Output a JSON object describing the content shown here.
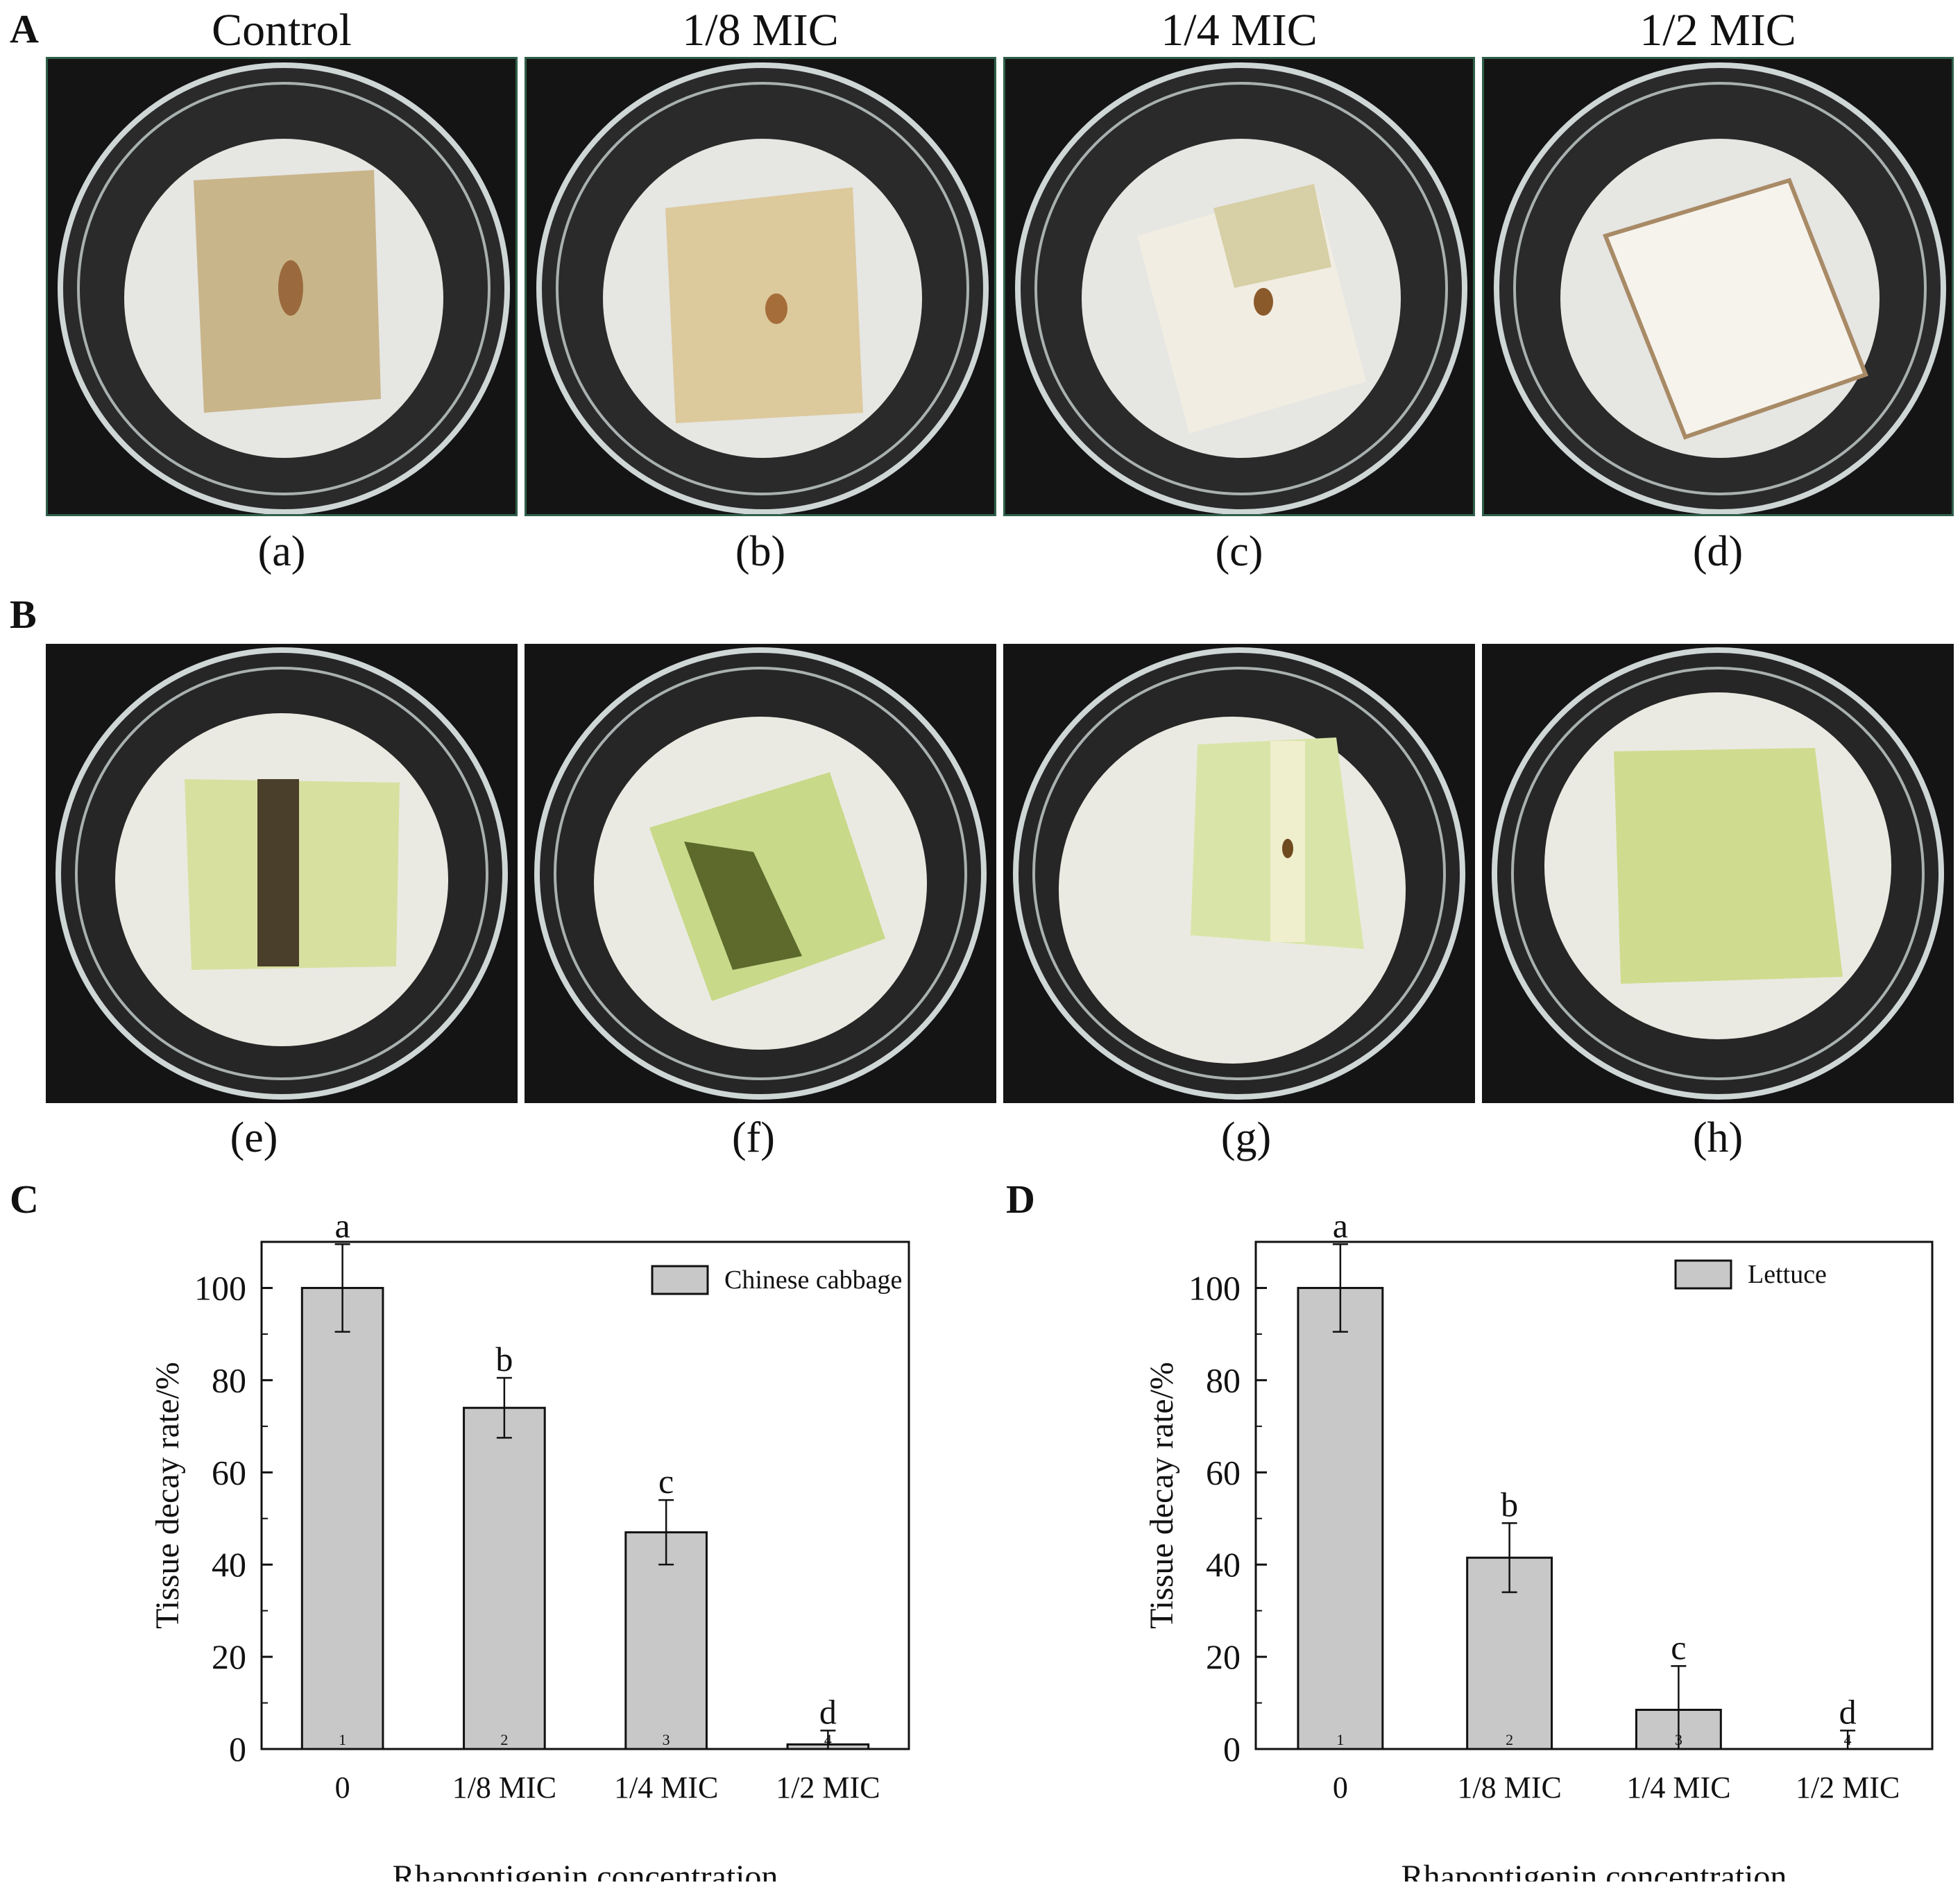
{
  "panels": {
    "A": "A",
    "B": "B",
    "C": "C",
    "D": "D"
  },
  "column_headers": [
    "Control",
    "1/8 MIC",
    "1/4 MIC",
    "1/2 MIC"
  ],
  "row_a_labels": [
    "(a)",
    "(b)",
    "(c)",
    "(d)"
  ],
  "row_b_labels": [
    "(e)",
    "(f)",
    "(g)",
    "(h)"
  ],
  "chart_data": [
    {
      "type": "bar",
      "panel": "C",
      "categories": [
        "0",
        "1/8 MIC",
        "1/4 MIC",
        "1/2 MIC"
      ],
      "category_index_labels": [
        "1",
        "2",
        "3",
        "4"
      ],
      "values": [
        100,
        74,
        47,
        1
      ],
      "errors": [
        9.5,
        6.5,
        7,
        3
      ],
      "letters": [
        "a",
        "b",
        "c",
        "d"
      ],
      "legend": "Chinese cabbage",
      "legend_position": "top-right",
      "xlabel": "Rhapontigenin concentration",
      "ylabel": "Tissue decay rate/%",
      "ylim": [
        0,
        110
      ],
      "yticks": [
        0,
        20,
        40,
        60,
        80,
        100
      ],
      "bar_color": "#c8c8c8"
    },
    {
      "type": "bar",
      "panel": "D",
      "categories": [
        "0",
        "1/8 MIC",
        "1/4 MIC",
        "1/2 MIC"
      ],
      "category_index_labels": [
        "1",
        "2",
        "3",
        "4"
      ],
      "values": [
        100,
        41.5,
        8.5,
        0
      ],
      "errors": [
        9.5,
        7.5,
        9.5,
        4
      ],
      "letters": [
        "a",
        "b",
        "c",
        "d"
      ],
      "legend": "Lettuce",
      "legend_position": "top-right",
      "xlabel": "Rhapontigenin concentration",
      "ylabel": "Tissue decay rate/%",
      "ylim": [
        0,
        110
      ],
      "yticks": [
        0,
        20,
        40,
        60,
        80,
        100
      ],
      "bar_color": "#c8c8c8"
    }
  ]
}
